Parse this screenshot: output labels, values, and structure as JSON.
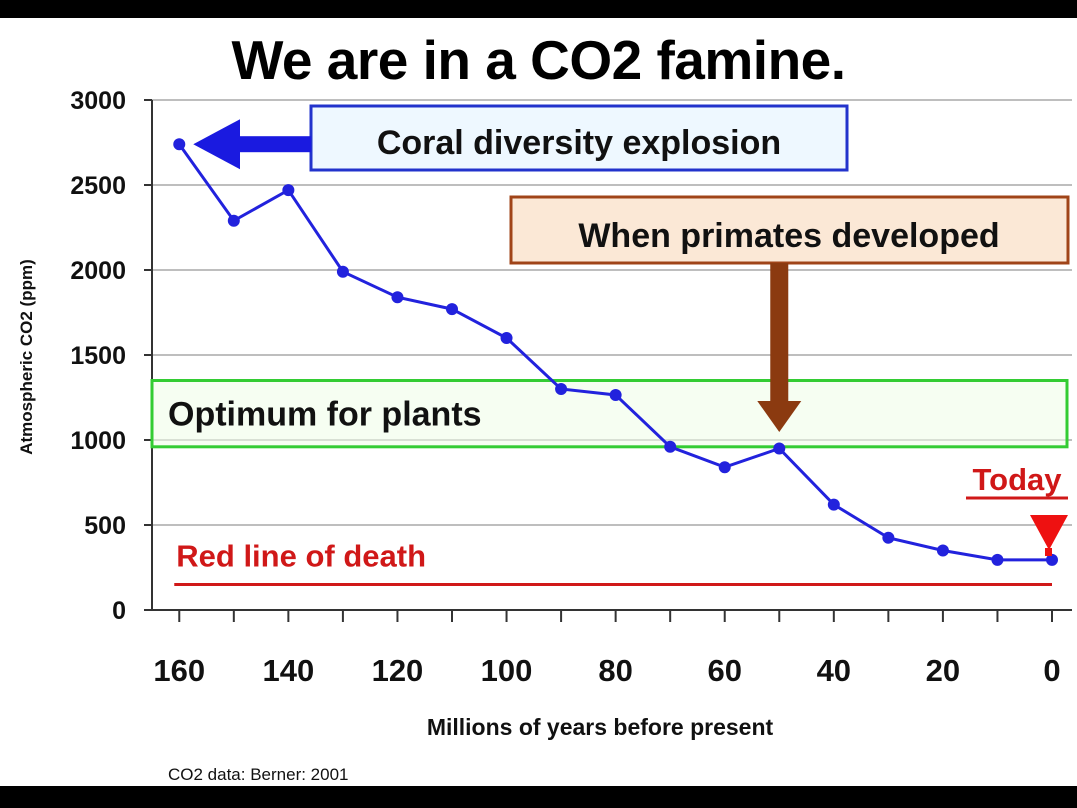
{
  "chart_data": {
    "type": "line",
    "title": "We are in a CO2 famine.",
    "xlabel": "Millions of years before present",
    "ylabel": "Atmospheric CO2 (ppm)",
    "xlim": [
      165,
      0
    ],
    "ylim": [
      0,
      3000
    ],
    "x_ticks": [
      160,
      140,
      120,
      100,
      80,
      60,
      40,
      20,
      0
    ],
    "y_ticks": [
      0,
      500,
      1000,
      1500,
      2000,
      2500,
      3000
    ],
    "grid": "horizontal",
    "series": [
      {
        "x": [
          160,
          150,
          140,
          130,
          120,
          110,
          100,
          90,
          80,
          70,
          60,
          50,
          40,
          30,
          20,
          10,
          0
        ],
        "y": [
          2740,
          2290,
          2470,
          1990,
          1840,
          1770,
          1600,
          1300,
          1265,
          960,
          840,
          950,
          620,
          425,
          350,
          295,
          295
        ],
        "color": "#2222dd"
      }
    ],
    "annotations": {
      "coral": "Coral diversity explosion",
      "primates": "When primates developed",
      "optimum": "Optimum for plants",
      "optimum_range": [
        960,
        1350
      ],
      "today": "Today",
      "death": "Red line of death",
      "death_level": 150
    },
    "source": "CO2 data: Berner: 2001"
  },
  "colors": {
    "series": "#2222dd",
    "grid": "#a8a8a8",
    "coral_box_fill": "#eef8ff",
    "coral_box_border": "#2233cc",
    "primates_box_fill": "#fbe8d6",
    "primates_box_border": "#a04418",
    "primates_arrow": "#8b3a10",
    "optimum_fill": "#eefde8",
    "optimum_border": "#33cc33",
    "death": "#d01818"
  }
}
